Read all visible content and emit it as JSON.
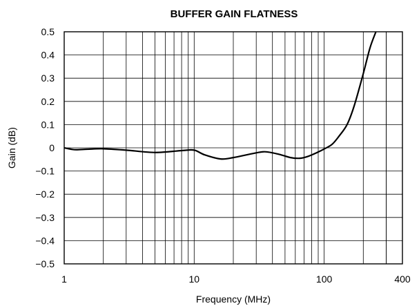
{
  "chart_data": {
    "type": "line",
    "title": "BUFFER GAIN FLATNESS",
    "xlabel": "Frequency (MHz)",
    "ylabel": "Gain (dB)",
    "x_scale": "log",
    "xlim": [
      1,
      400
    ],
    "ylim": [
      -0.5,
      0.5
    ],
    "grid": true,
    "x_tick_labels": [
      "1",
      "10",
      "100",
      "400"
    ],
    "y_tick_labels": [
      "0.5",
      "0.4",
      "0.3",
      "0.2",
      "0.1",
      "0",
      "−0.1",
      "−0.2",
      "−0.3",
      "−0.4",
      "−0.5"
    ],
    "series": [
      {
        "x": [
          1,
          1.2,
          1.5,
          2,
          3,
          5,
          8,
          10,
          12,
          16,
          20,
          28,
          35,
          45,
          55,
          65,
          75,
          90,
          100,
          115,
          130,
          150,
          170,
          200,
          225,
          250
        ],
        "y": [
          0.0,
          -0.008,
          -0.006,
          -0.004,
          -0.01,
          -0.02,
          -0.012,
          -0.01,
          -0.03,
          -0.048,
          -0.042,
          -0.025,
          -0.017,
          -0.028,
          -0.042,
          -0.045,
          -0.037,
          -0.018,
          -0.005,
          0.015,
          0.05,
          0.1,
          0.18,
          0.32,
          0.43,
          0.5
        ]
      }
    ]
  }
}
